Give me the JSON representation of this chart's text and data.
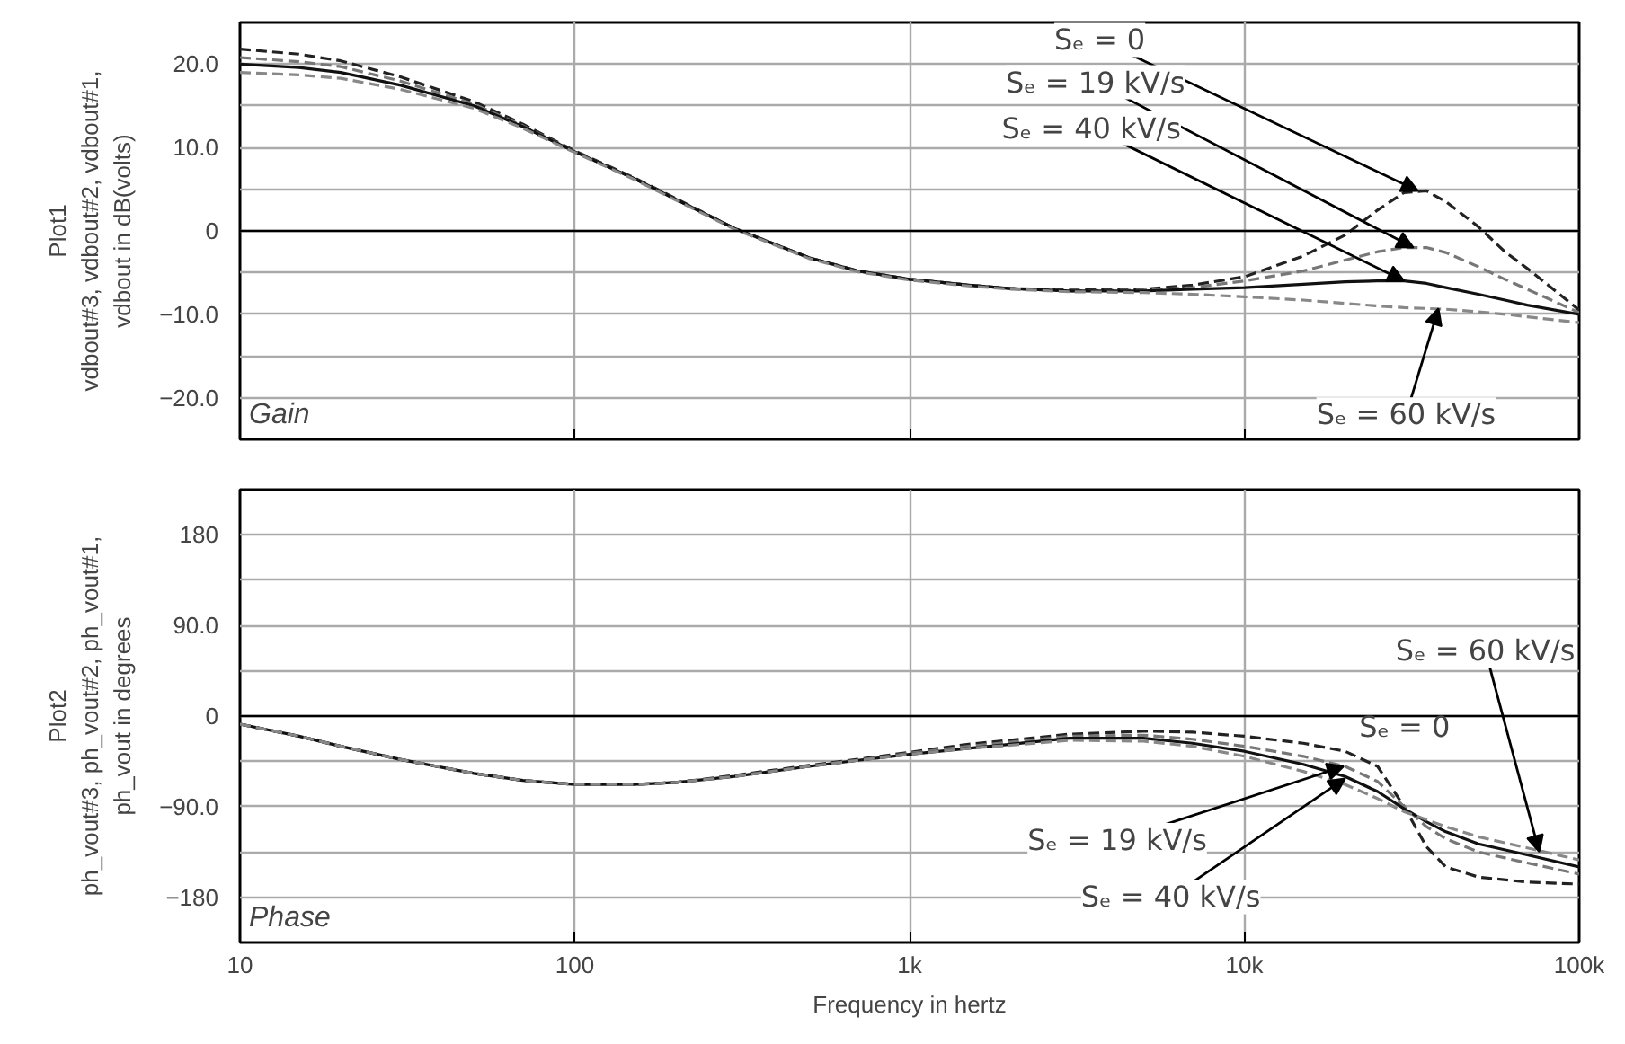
{
  "chart_data": [
    {
      "type": "line",
      "ylabel": "Plot1\nvdbout#3, vdbout#2, vdbout#1,\nvdbout in dB(volts)",
      "log": "x",
      "grid": true,
      "tick_labels": "y",
      "x": [
        10,
        15,
        20,
        30,
        50,
        70,
        100,
        150,
        200,
        300,
        500,
        700,
        1000,
        1500,
        2000,
        3000,
        5000,
        7000,
        10000,
        15000,
        20000,
        25000,
        30000,
        35000,
        40000,
        50000,
        60000,
        70000,
        100000
      ],
      "xlim": [
        10,
        100000
      ],
      "xticks": [
        {
          "value": 10,
          "label": null
        },
        {
          "value": 100,
          "label": null
        },
        {
          "value": 1000,
          "label": null
        },
        {
          "value": 10000,
          "label": null
        },
        {
          "value": 100000,
          "label": null
        }
      ],
      "ylim": [
        -25,
        25
      ],
      "yticks": [
        {
          "value": -25,
          "label": null
        },
        {
          "value": -20,
          "label": "−20.0"
        },
        {
          "value": -15,
          "label": null
        },
        {
          "value": -10,
          "label": "−10.0"
        },
        {
          "value": -5,
          "label": null
        },
        0,
        {
          "value": 5,
          "label": null
        },
        {
          "value": 10,
          "label": "10.0"
        },
        {
          "value": 15,
          "label": null
        },
        {
          "value": 20,
          "label": "20.0"
        },
        {
          "value": 25,
          "label": null
        }
      ],
      "ref_lines": [
        {
          "axis": "y",
          "value": 0,
          "color": "#000000"
        }
      ],
      "series": [
        {
          "color": "#222222",
          "line_style": "dashed",
          "values": [
            21.8,
            21.2,
            20.4,
            18.5,
            15.5,
            12.8,
            9.6,
            6.4,
            3.9,
            0.3,
            -3.2,
            -4.8,
            -5.8,
            -6.5,
            -6.9,
            -7.1,
            -7.0,
            -6.5,
            -5.5,
            -3.0,
            -0.5,
            2.5,
            4.6,
            4.8,
            3.5,
            0.5,
            -2.5,
            -4.5,
            -9.5
          ]
        },
        {
          "color": "#777777",
          "line_style": "dashed",
          "values": [
            20.8,
            20.3,
            19.7,
            18.0,
            15.2,
            12.6,
            9.5,
            6.3,
            3.8,
            0.3,
            -3.2,
            -4.8,
            -5.8,
            -6.5,
            -6.9,
            -7.2,
            -7.1,
            -6.8,
            -6.0,
            -4.8,
            -3.5,
            -2.5,
            -2.0,
            -2.0,
            -2.6,
            -4.3,
            -5.8,
            -7.0,
            -9.8
          ]
        },
        {
          "color": "#111111",
          "line_style": "solid",
          "values": [
            20.0,
            19.6,
            19.0,
            17.5,
            15.0,
            12.5,
            9.5,
            6.3,
            3.8,
            0.3,
            -3.2,
            -4.8,
            -5.8,
            -6.5,
            -6.9,
            -7.2,
            -7.2,
            -7.0,
            -6.8,
            -6.4,
            -6.1,
            -6.0,
            -6.0,
            -6.3,
            -6.8,
            -7.6,
            -8.3,
            -8.9,
            -10.0
          ]
        },
        {
          "color": "#888888",
          "line_style": "dashed",
          "values": [
            19.0,
            18.7,
            18.3,
            17.0,
            14.7,
            12.3,
            9.4,
            6.2,
            3.7,
            0.2,
            -3.3,
            -4.9,
            -5.9,
            -6.6,
            -7.0,
            -7.3,
            -7.4,
            -7.6,
            -7.9,
            -8.3,
            -8.7,
            -9.0,
            -9.2,
            -9.3,
            -9.4,
            -9.7,
            -10.0,
            -10.3,
            -11.0
          ]
        }
      ],
      "annotations": [
        {
          "text": "Sₑ = 0",
          "x": 33000,
          "y": 4.8
        },
        {
          "text": "Sₑ = 19 kV/s",
          "x": 32000,
          "y": -2.0
        },
        {
          "text": "Sₑ = 40 kV/s",
          "x": 30000,
          "y": -6.0
        },
        {
          "text": "Sₑ = 60 kV/s",
          "x": 38000,
          "y": -9.3
        },
        "Gain"
      ]
    },
    {
      "type": "line",
      "ylabel": "Plot2\nph_vout#3, ph_vout#2, ph_vout#1,\nph_vout in degrees",
      "xlabel": "Frequency in hertz",
      "log": "x",
      "grid": true,
      "x": [
        10,
        15,
        20,
        30,
        50,
        70,
        100,
        150,
        200,
        300,
        500,
        700,
        1000,
        1500,
        2000,
        3000,
        5000,
        7000,
        10000,
        15000,
        20000,
        25000,
        30000,
        35000,
        40000,
        50000,
        70000,
        100000
      ],
      "xlim": [
        10,
        100000
      ],
      "xticks": [
        10,
        100,
        {
          "value": 1000,
          "label": "1k"
        },
        {
          "value": 10000,
          "label": "10k"
        },
        {
          "value": 100000,
          "label": "100k"
        }
      ],
      "ylim": [
        -225,
        225
      ],
      "yticks": [
        {
          "value": -225,
          "label": null
        },
        {
          "value": -180,
          "label": "−180"
        },
        {
          "value": -135,
          "label": null
        },
        {
          "value": -90,
          "label": "−90.0"
        },
        {
          "value": -45,
          "label": null
        },
        0,
        {
          "value": 45,
          "label": null
        },
        {
          "value": 90,
          "label": "90.0"
        },
        {
          "value": 135,
          "label": null
        },
        180,
        {
          "value": 225,
          "label": null
        }
      ],
      "ref_lines": [
        {
          "axis": "y",
          "value": 0,
          "color": "#000000"
        }
      ],
      "series": [
        {
          "color": "#222222",
          "line_style": "dashed",
          "values": [
            -8,
            -20,
            -30,
            -43,
            -57,
            -64,
            -68,
            -68,
            -66,
            -59,
            -49,
            -43,
            -36,
            -28,
            -24,
            -18,
            -15,
            -16,
            -20,
            -27,
            -35,
            -50,
            -90,
            -130,
            -150,
            -160,
            -165,
            -167
          ]
        },
        {
          "color": "#777777",
          "line_style": "dashed",
          "values": [
            -8,
            -20,
            -30,
            -43,
            -57,
            -64,
            -68,
            -68,
            -66,
            -60,
            -50,
            -44,
            -37,
            -30,
            -26,
            -20,
            -19,
            -23,
            -30,
            -40,
            -50,
            -65,
            -90,
            -110,
            -122,
            -135,
            -146,
            -157
          ]
        },
        {
          "color": "#111111",
          "line_style": "solid",
          "values": [
            -8,
            -20,
            -30,
            -43,
            -57,
            -64,
            -68,
            -68,
            -66,
            -60,
            -50,
            -44,
            -38,
            -32,
            -28,
            -22,
            -22,
            -27,
            -35,
            -48,
            -60,
            -75,
            -92,
            -105,
            -115,
            -127,
            -138,
            -150
          ]
        },
        {
          "color": "#888888",
          "line_style": "dashed",
          "values": [
            -8,
            -20,
            -30,
            -43,
            -57,
            -64,
            -68,
            -68,
            -66,
            -60,
            -50,
            -44,
            -38,
            -32,
            -29,
            -24,
            -25,
            -30,
            -40,
            -55,
            -68,
            -82,
            -95,
            -103,
            -110,
            -120,
            -131,
            -143
          ]
        }
      ],
      "annotations": [
        {
          "text": "Sₑ = 60 kV/s",
          "x": 76000,
          "y": -135
        },
        {
          "text": "Sₑ = 0",
          "x": 25000,
          "y": -50
        },
        {
          "text": "Sₑ = 19 kV/s",
          "x": 19800,
          "y": -50
        },
        {
          "text": "Sₑ = 40 kV/s",
          "x": 20000,
          "y": -62
        },
        "Phase"
      ]
    }
  ]
}
